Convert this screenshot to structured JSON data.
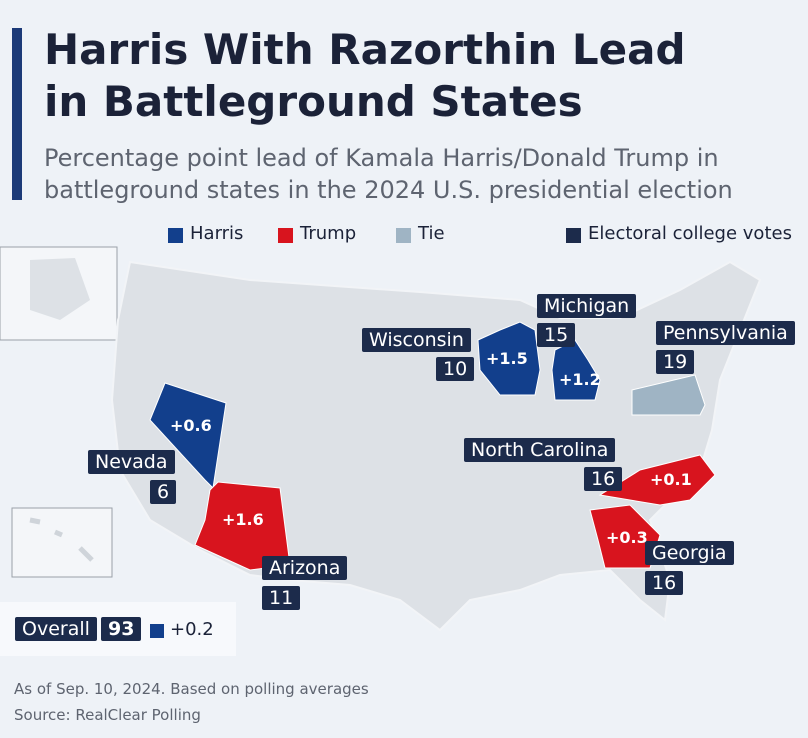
{
  "header": {
    "title_lines": [
      "Harris With Razorthin Lead",
      "in Battleground States"
    ],
    "subtitle_lines": [
      "Percentage point lead of Kamala Harris/Donald Trump in",
      "battleground states in the 2024 U.S. presidential election"
    ]
  },
  "legend": [
    "Harris",
    "Trump",
    "Tie",
    "Electoral college votes"
  ],
  "states": [
    {
      "name": "Nevada",
      "lead": "+0.6",
      "votes": 6
    },
    {
      "name": "Arizona",
      "lead": "+1.6",
      "votes": 11
    },
    {
      "name": "Wisconsin",
      "lead": "+1.5",
      "votes": 10
    },
    {
      "name": "Michigan",
      "lead": "+1.2",
      "votes": 15
    },
    {
      "name": "Pennsylvania",
      "votes": 19
    },
    {
      "name": "North Carolina",
      "lead": "+0.1",
      "votes": 16
    },
    {
      "name": "Georgia",
      "lead": "+0.3",
      "votes": 16
    }
  ],
  "overall": {
    "label": "Overall",
    "votes": 93,
    "lead": "+0.2"
  },
  "footer": [
    "As of Sep. 10, 2024. Based on polling averages",
    "Source: RealClear Polling"
  ]
}
